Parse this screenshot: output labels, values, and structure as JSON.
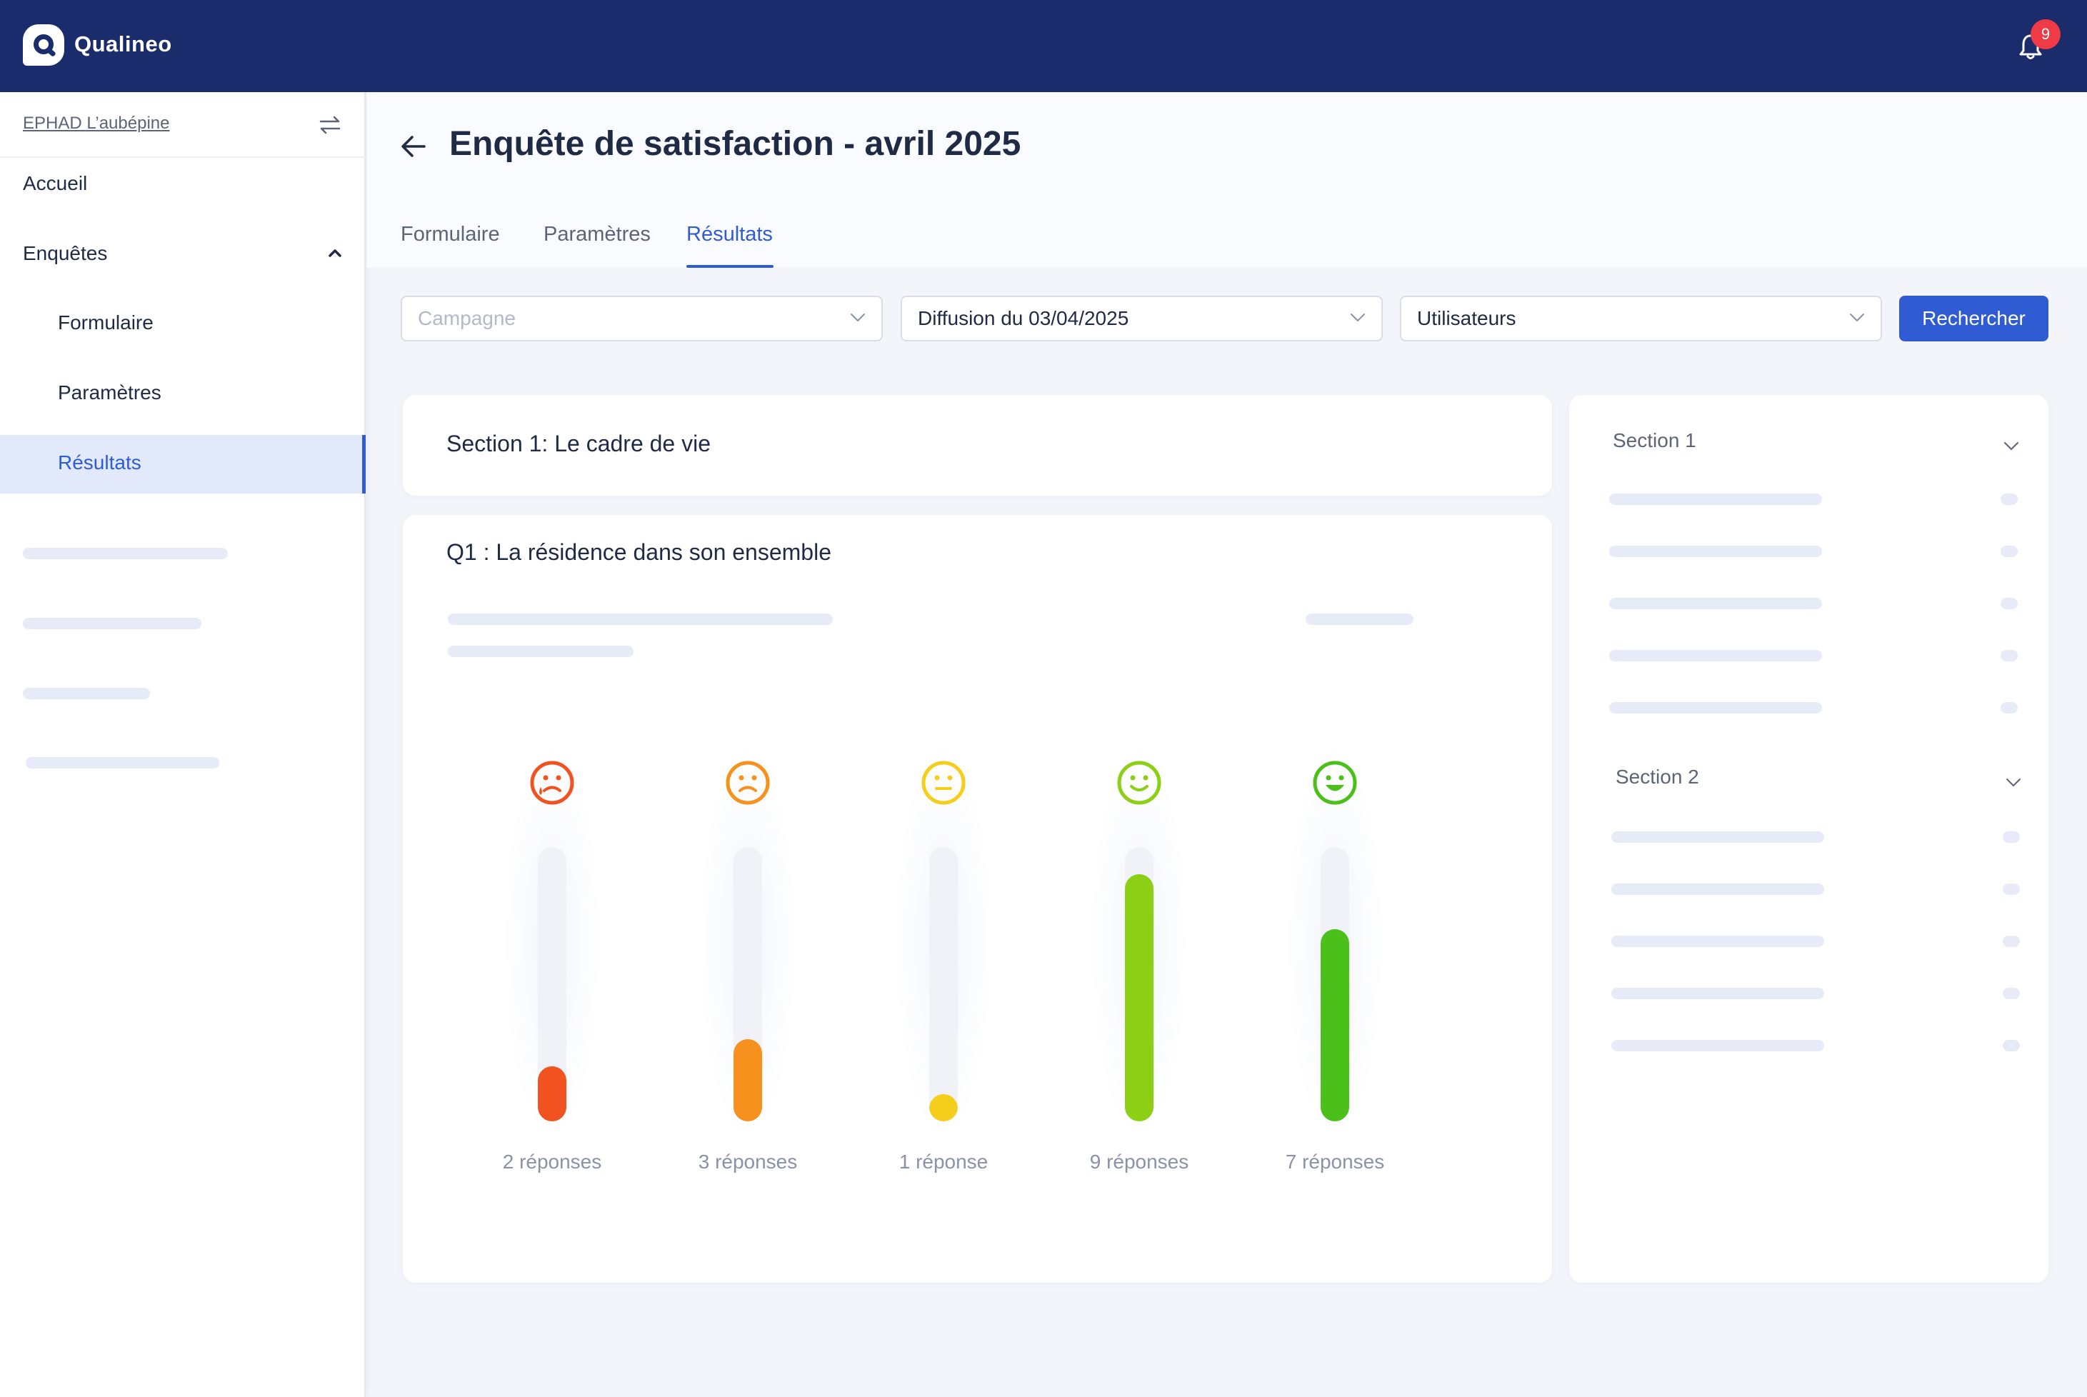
{
  "app": {
    "name": "Qualineo",
    "notification_count": "9"
  },
  "sidebar": {
    "organization": "EPHAD L’aubépine",
    "items": [
      {
        "label": "Accueil"
      },
      {
        "label": "Enquêtes"
      },
      {
        "label": "Formulaire"
      },
      {
        "label": "Paramètres"
      },
      {
        "label": "Résultats",
        "active": true
      }
    ]
  },
  "page": {
    "title": "Enquête de satisfaction - avril 2025",
    "tabs": [
      {
        "label": "Formulaire"
      },
      {
        "label": "Paramètres"
      },
      {
        "label": "Résultats",
        "active": true
      }
    ]
  },
  "filters": {
    "campaign_placeholder": "Campagne",
    "diffusion_value": "Diffusion du 03/04/2025",
    "users_value": "Utilisateurs",
    "search_label": "Rechercher"
  },
  "section": {
    "title": "Section 1: Le cadre de vie"
  },
  "question": {
    "title": "Q1 : La résidence dans son ensemble"
  },
  "chart_data": {
    "type": "bar",
    "categories": [
      "very-dissatisfied",
      "dissatisfied",
      "neutral",
      "satisfied",
      "very-satisfied"
    ],
    "values": [
      2,
      3,
      1,
      9,
      7
    ],
    "labels": [
      "2 réponses",
      "3 réponses",
      "1 réponse",
      "9 réponses",
      "7 réponses"
    ],
    "colors": [
      "#f0531f",
      "#f7911e",
      "#f5cd1d",
      "#8ccf14",
      "#4bbf1a"
    ],
    "icons": [
      "crying-face-icon",
      "sad-face-icon",
      "neutral-face-icon",
      "smiling-face-icon",
      "grinning-face-icon"
    ],
    "ymax": 10
  },
  "side_panel": {
    "sections": [
      {
        "label": "Section 1"
      },
      {
        "label": "Section 2"
      }
    ]
  },
  "colors": {
    "primary": "#2f5bd3",
    "header": "#1a2c6b",
    "badge": "#ef3b45"
  }
}
